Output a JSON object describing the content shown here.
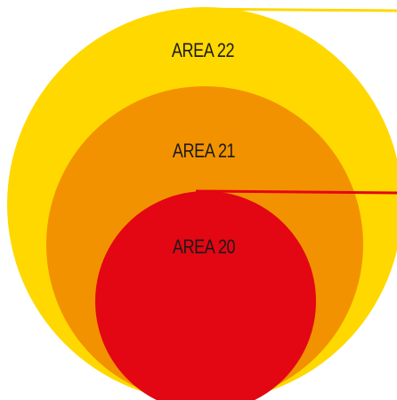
{
  "areas": [
    {
      "label": "AREA 22",
      "color": "#FFD800"
    },
    {
      "label": "AREA 21",
      "color": "#F29200"
    },
    {
      "label": "AREA 20",
      "color": "#E30613"
    }
  ],
  "leader_colors": {
    "area_22": "#FFD800",
    "area_20": "#E30613"
  }
}
